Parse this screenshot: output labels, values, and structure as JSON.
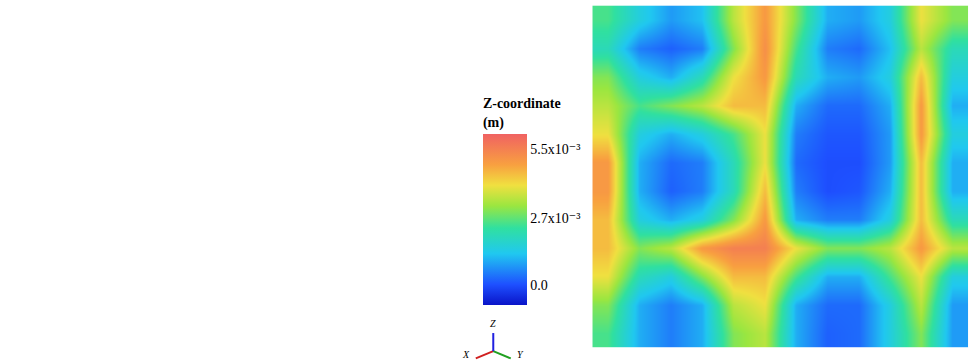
{
  "chart_data": {
    "type": "heatmap",
    "colorbar_title": [
      "Z-coordinate",
      "(m)"
    ],
    "color_range": [
      -0.0008,
      0.0061
    ],
    "color_ticks": [
      {
        "value": 0.0055,
        "label": "5.5x10⁻³"
      },
      {
        "value": 0.0027,
        "label": "2.7x10⁻³"
      },
      {
        "value": 0,
        "label": "0.0"
      }
    ],
    "tick_labels": false,
    "axis_labels": [
      "X",
      "Y",
      "Z"
    ],
    "cells": [
      [
        0.0025,
        0.0015,
        0.0008,
        0.0012,
        0.0035,
        0.005,
        0.003,
        0.001,
        0.0008,
        0.0015,
        0.004,
        0.003
      ],
      [
        0.002,
        0.0005,
        0.0002,
        0.0005,
        0.003,
        0.0052,
        0.0025,
        0.0005,
        0.0003,
        0.0012,
        0.0035,
        0.002
      ],
      [
        0.003,
        0.0015,
        0.001,
        0.002,
        0.004,
        0.005,
        0.002,
        0.001,
        0.0008,
        0.0015,
        0.0045,
        0.0015
      ],
      [
        0.0035,
        0.0025,
        0.003,
        0.0035,
        0.0045,
        0.0045,
        0.001,
        0.0003,
        0.0003,
        0.001,
        0.005,
        0.001
      ],
      [
        0.004,
        0.0015,
        0.001,
        0.0015,
        0.0025,
        0.004,
        0.0005,
        0.0001,
        0.0001,
        0.0008,
        0.005,
        0.0015
      ],
      [
        0.005,
        0.001,
        0.0003,
        0.0005,
        0.002,
        0.004,
        0.0003,
        0.0,
        0.0,
        0.0008,
        0.0045,
        0.001
      ],
      [
        0.005,
        0.001,
        0.0002,
        0.0005,
        0.002,
        0.0045,
        0.0005,
        0.0,
        0.0001,
        0.001,
        0.0045,
        0.001
      ],
      [
        0.0045,
        0.0015,
        0.001,
        0.0015,
        0.003,
        0.005,
        0.001,
        0.0005,
        0.0005,
        0.0015,
        0.0045,
        0.002
      ],
      [
        0.0045,
        0.003,
        0.0035,
        0.005,
        0.0055,
        0.0055,
        0.004,
        0.003,
        0.003,
        0.0035,
        0.005,
        0.0035
      ],
      [
        0.004,
        0.002,
        0.0015,
        0.003,
        0.0045,
        0.0045,
        0.0025,
        0.001,
        0.001,
        0.0025,
        0.004,
        0.0015
      ],
      [
        0.003,
        0.001,
        0.0005,
        0.001,
        0.0035,
        0.004,
        0.001,
        0.0003,
        0.0003,
        0.0015,
        0.0035,
        0.0008
      ],
      [
        0.0025,
        0.001,
        0.0005,
        0.001,
        0.003,
        0.0035,
        0.001,
        0.0002,
        0.0003,
        0.0015,
        0.003,
        0.0008
      ]
    ]
  }
}
